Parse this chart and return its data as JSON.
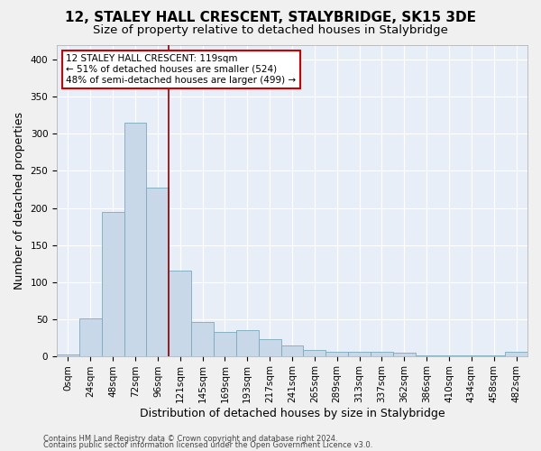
{
  "title": "12, STALEY HALL CRESCENT, STALYBRIDGE, SK15 3DE",
  "subtitle": "Size of property relative to detached houses in Stalybridge",
  "xlabel": "Distribution of detached houses by size in Stalybridge",
  "ylabel": "Number of detached properties",
  "bar_color": "#c8d8e8",
  "bar_edge_color": "#7aaabb",
  "background_color": "#e8eef8",
  "grid_color": "#ffffff",
  "categories": [
    "0sqm",
    "24sqm",
    "48sqm",
    "72sqm",
    "96sqm",
    "121sqm",
    "145sqm",
    "169sqm",
    "193sqm",
    "217sqm",
    "241sqm",
    "265sqm",
    "289sqm",
    "313sqm",
    "337sqm",
    "362sqm",
    "386sqm",
    "410sqm",
    "434sqm",
    "458sqm",
    "482sqm"
  ],
  "values": [
    2,
    51,
    195,
    315,
    228,
    115,
    46,
    33,
    35,
    23,
    14,
    8,
    6,
    5,
    5,
    4,
    1,
    1,
    1,
    1,
    5
  ],
  "ylim": [
    0,
    420
  ],
  "yticks": [
    0,
    50,
    100,
    150,
    200,
    250,
    300,
    350,
    400
  ],
  "property_line_x": 4.5,
  "property_line_color": "#8b0000",
  "annotation_text": "12 STALEY HALL CRESCENT: 119sqm\n← 51% of detached houses are smaller (524)\n48% of semi-detached houses are larger (499) →",
  "annotation_box_color": "#ffffff",
  "annotation_box_edge_color": "#cc0000",
  "footer_line1": "Contains HM Land Registry data © Crown copyright and database right 2024.",
  "footer_line2": "Contains public sector information licensed under the Open Government Licence v3.0.",
  "title_fontsize": 11,
  "subtitle_fontsize": 9.5,
  "tick_fontsize": 7.5,
  "ylabel_fontsize": 9,
  "xlabel_fontsize": 9,
  "annotation_fontsize": 7.5,
  "footer_fontsize": 6
}
